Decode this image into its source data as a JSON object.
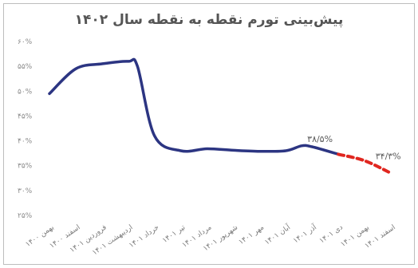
{
  "chart_data": {
    "type": "line",
    "title": "پیش‌بینی تورم نقطه به نقطه سال ۱۴۰۲",
    "xlabel": "",
    "ylabel": "",
    "ylim": [
      25,
      60
    ],
    "y_ticks": [
      "۲۵%",
      "۳۰%",
      "۳۵%",
      "۴۰%",
      "۴۵%",
      "۵۰%",
      "۵۵%",
      "۶۰%"
    ],
    "grid": false,
    "categories": [
      "بهمن ۱۴۰۰",
      "اسفند ۱۴۰۰",
      "فروردین ۱۴۰۱",
      "اردیبهشت ۱۴۰۱",
      "خرداد ۱۴۰۱",
      "تیر ۱۴۰۱",
      "مرداد ۱۴۰۱",
      "شهریور ۱۴۰۱",
      "مهر ۱۴۰۱",
      "آبان ۱۴۰۱",
      "آذر ۱۴۰۱",
      "دی ۱۴۰۱",
      "بهمن ۱۴۰۱",
      "اسفند ۱۴۰۱"
    ],
    "series": [
      {
        "name": "",
        "color": "#2c3582",
        "style": "solid",
        "x": [
          0,
          1,
          2,
          3,
          3.35,
          4,
          5,
          6,
          7,
          8,
          9,
          9.6,
          10,
          11
        ],
        "values": [
          49.5,
          54.5,
          55.5,
          56.0,
          55.0,
          41.0,
          38.0,
          38.4,
          38.1,
          37.9,
          38.0,
          39.0,
          38.8,
          37.3
        ]
      },
      {
        "name": "",
        "color": "#e0261f",
        "style": "dashed",
        "x": [
          11,
          12,
          13
        ],
        "values": [
          37.3,
          36.0,
          33.5
        ]
      }
    ],
    "annotations": [
      {
        "text": "۳۸/۵%",
        "x": 10.3,
        "y": 39.8
      },
      {
        "text": "۳۴/۳%",
        "x": 12.9,
        "y": 36.3
      }
    ]
  }
}
